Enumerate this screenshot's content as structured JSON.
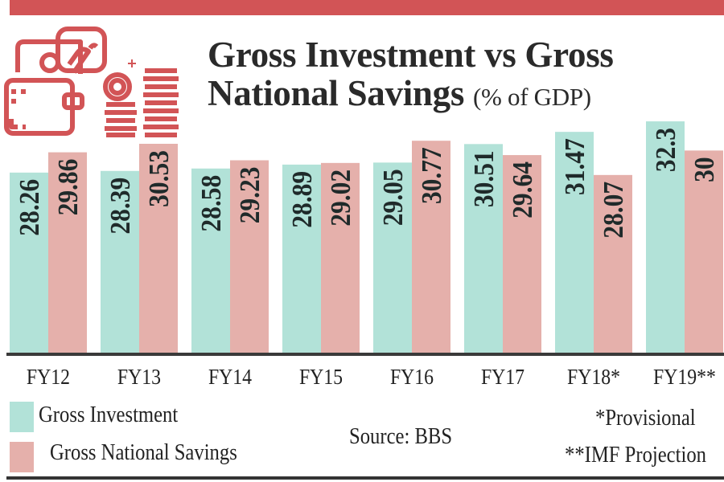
{
  "title": {
    "line1": "Gross Investment vs Gross",
    "line2": "National Savings",
    "unit": "(% of GDP)"
  },
  "colors": {
    "investment": "#b2e2d8",
    "savings": "#e5b0ab",
    "accent": "#d25456"
  },
  "icon": "wallet-coins-icon",
  "chart_data": {
    "type": "bar",
    "categories": [
      "FY12",
      "FY13",
      "FY14",
      "FY15",
      "FY16",
      "FY17",
      "FY18*",
      "FY19**"
    ],
    "series": [
      {
        "name": "Gross Investment",
        "values": [
          28.26,
          28.39,
          28.58,
          28.89,
          29.05,
          30.51,
          31.47,
          32.3
        ],
        "labels": [
          "28.26",
          "28.39",
          "28.58",
          "28.89",
          "29.05",
          "30.51",
          "31.47",
          "32.3"
        ]
      },
      {
        "name": "Gross National Savings",
        "values": [
          29.86,
          30.53,
          29.23,
          29.02,
          30.77,
          29.64,
          28.07,
          30
        ],
        "labels": [
          "29.86",
          "30.53",
          "29.23",
          "29.02",
          "30.77",
          "29.64",
          "28.07",
          "30"
        ]
      }
    ],
    "ylim": [
      14,
      33
    ],
    "grid": false,
    "legend": "bottom-left"
  },
  "notes": {
    "source": "Source: BBS",
    "provisional": "*Provisional",
    "projection": "**IMF Projection"
  }
}
